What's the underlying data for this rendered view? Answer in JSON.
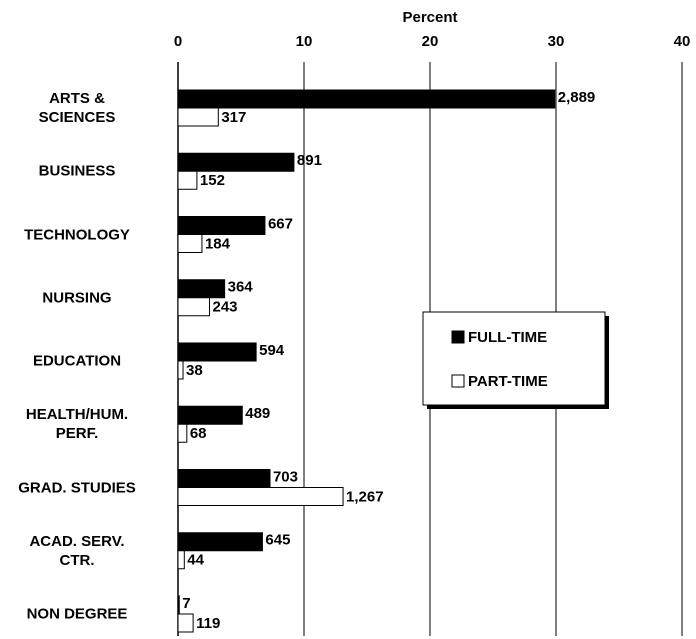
{
  "chart_data": {
    "type": "hbar",
    "x_label": "Percent",
    "categories": [
      "ARTS &\nSCIENCES",
      "BUSINESS",
      "TECHNOLOGY",
      "NURSING",
      "EDUCATION",
      "HEALTH/HUM.\nPERF.",
      "GRAD. STUDIES",
      "ACAD. SERV.\nCTR.",
      "NON DEGREE"
    ],
    "series": [
      {
        "name": "FULL-TIME",
        "color": "#000000",
        "values": [
          29.9,
          9.2,
          6.9,
          3.7,
          6.2,
          5.1,
          7.3,
          6.7,
          0.1
        ],
        "value_labels": [
          "2,889",
          "891",
          "667",
          "364",
          "594",
          "489",
          "703",
          "645",
          "7"
        ]
      },
      {
        "name": "PART-TIME",
        "color": "#ffffff",
        "values": [
          3.2,
          1.5,
          1.9,
          2.5,
          0.4,
          0.7,
          13.1,
          0.5,
          1.2
        ],
        "value_labels": [
          "317",
          "152",
          "184",
          "243",
          "38",
          "68",
          "1,267",
          "44",
          "119"
        ]
      }
    ],
    "xlim": [
      0,
      40
    ],
    "xticks": [
      0,
      10,
      20,
      30,
      40
    ],
    "grid": true,
    "legend": "right"
  }
}
